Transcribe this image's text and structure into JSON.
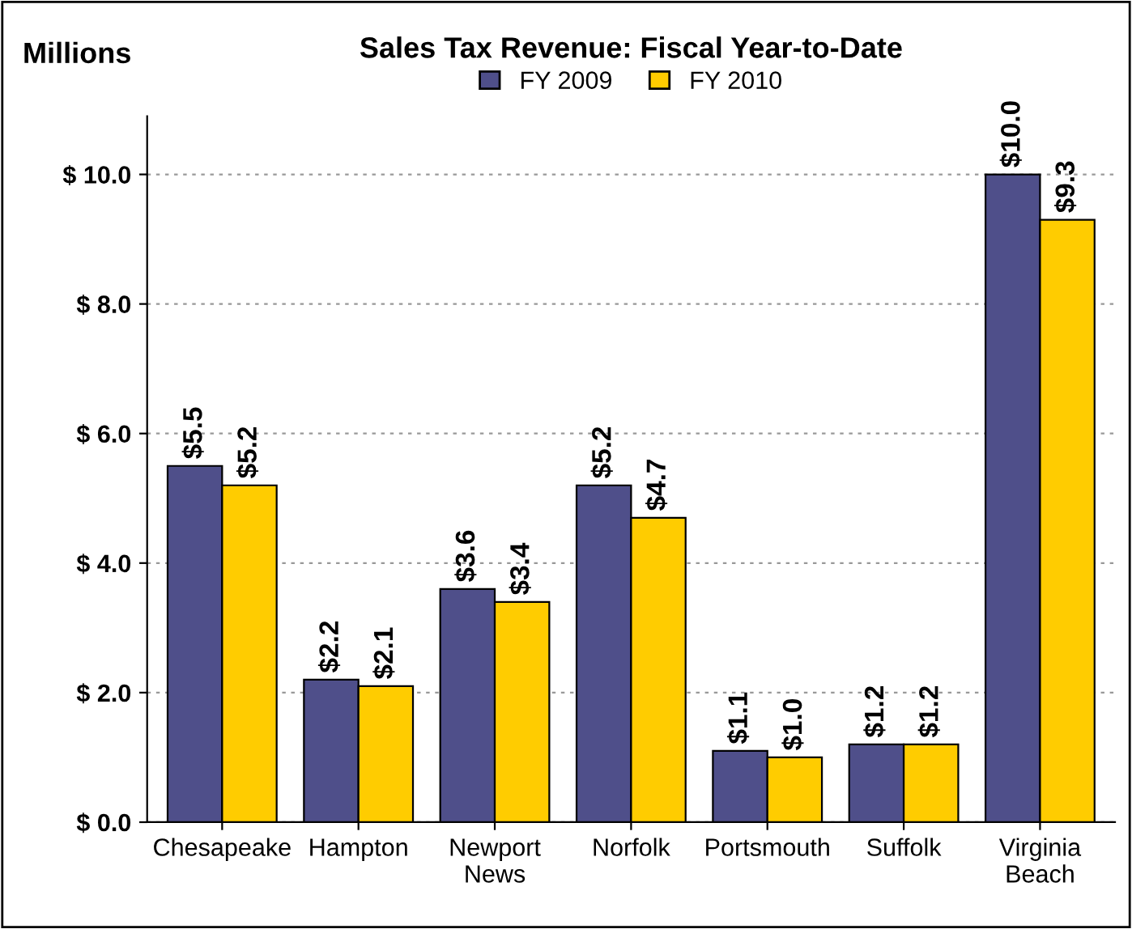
{
  "chart_data": {
    "type": "bar",
    "title": "Sales Tax Revenue: Fiscal Year-to-Date",
    "ylabel": "Millions",
    "categories": [
      "Chesapeake",
      "Hampton",
      "Newport\nNews",
      "Norfolk",
      "Portsmouth",
      "Suffolk",
      "Virginia\nBeach"
    ],
    "series": [
      {
        "name": "FY 2009",
        "color": "#4f4f8a",
        "values": [
          5.5,
          2.2,
          3.6,
          5.2,
          1.1,
          1.2,
          10.0
        ],
        "value_labels": [
          "$5.5",
          "$2.2",
          "$3.6",
          "$5.2",
          "$1.1",
          "$1.2",
          "$10.0"
        ]
      },
      {
        "name": "FY 2010",
        "color": "#ffcc00",
        "values": [
          5.2,
          2.1,
          3.4,
          4.7,
          1.0,
          1.2,
          9.3
        ],
        "value_labels": [
          "$5.2",
          "$2.1",
          "$3.4",
          "$4.7",
          "$1.0",
          "$1.2",
          "$9.3"
        ]
      }
    ],
    "ylim": [
      0,
      10.9
    ],
    "yticks": [
      {
        "value": 0,
        "label": "$ 0.0"
      },
      {
        "value": 2,
        "label": "$ 2.0"
      },
      {
        "value": 4,
        "label": "$ 4.0"
      },
      {
        "value": 6,
        "label": "$ 6.0"
      },
      {
        "value": 8,
        "label": "$ 8.0"
      },
      {
        "value": 10,
        "label": "$ 10.0"
      }
    ],
    "grid": "y",
    "legend": "top"
  }
}
